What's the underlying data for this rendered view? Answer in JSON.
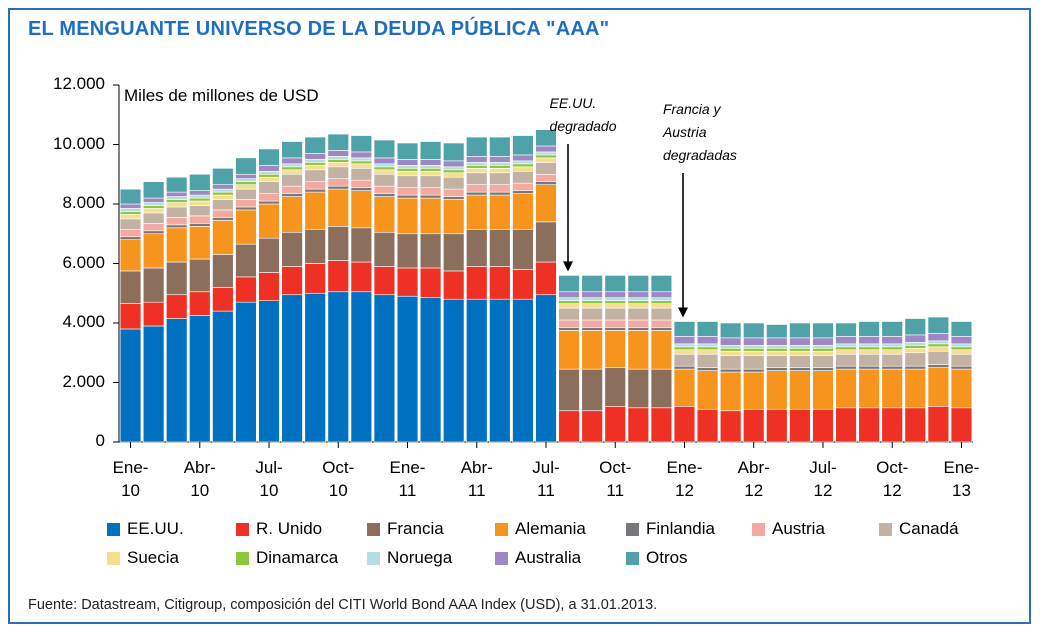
{
  "chart_data": {
    "type": "bar",
    "stacked": true,
    "title": "EL MENGUANTE UNIVERSO DE LA DEUDA PÚBLICA \"AAA\"",
    "ylabel": "Miles de millones de USD",
    "ylim": [
      0,
      12000
    ],
    "yticks": [
      {
        "value": 0,
        "label": "0"
      },
      {
        "value": 2000,
        "label": "2.000"
      },
      {
        "value": 4000,
        "label": "4.000"
      },
      {
        "value": 6000,
        "label": "6.000"
      },
      {
        "value": 8000,
        "label": "8.000"
      },
      {
        "value": 10000,
        "label": "10.000"
      },
      {
        "value": 12000,
        "label": "12.000"
      }
    ],
    "xticks": [
      {
        "index": 0,
        "line1": "Ene-",
        "line2": "10"
      },
      {
        "index": 3,
        "line1": "Abr-",
        "line2": "10"
      },
      {
        "index": 6,
        "line1": "Jul-",
        "line2": "10"
      },
      {
        "index": 9,
        "line1": "Oct-",
        "line2": "10"
      },
      {
        "index": 12,
        "line1": "Ene-",
        "line2": "11"
      },
      {
        "index": 15,
        "line1": "Abr-",
        "line2": "11"
      },
      {
        "index": 18,
        "line1": "Jul-",
        "line2": "11"
      },
      {
        "index": 21,
        "line1": "Oct-",
        "line2": "11"
      },
      {
        "index": 24,
        "line1": "Ene-",
        "line2": "12"
      },
      {
        "index": 27,
        "line1": "Abr-",
        "line2": "12"
      },
      {
        "index": 30,
        "line1": "Jul-",
        "line2": "12"
      },
      {
        "index": 33,
        "line1": "Oct-",
        "line2": "12"
      },
      {
        "index": 36,
        "line1": "Ene-",
        "line2": "13"
      }
    ],
    "categories": [
      "Ene-10",
      "Feb-10",
      "Mar-10",
      "Abr-10",
      "May-10",
      "Jun-10",
      "Jul-10",
      "Ago-10",
      "Sep-10",
      "Oct-10",
      "Nov-10",
      "Dic-10",
      "Ene-11",
      "Feb-11",
      "Mar-11",
      "Abr-11",
      "May-11",
      "Jun-11",
      "Jul-11",
      "Ago-11",
      "Sep-11",
      "Oct-11",
      "Nov-11",
      "Dic-11",
      "Ene-12",
      "Feb-12",
      "Mar-12",
      "Abr-12",
      "May-12",
      "Jun-12",
      "Jul-12",
      "Ago-12",
      "Sep-12",
      "Oct-12",
      "Nov-12",
      "Dic-12",
      "Ene-13"
    ],
    "series": [
      {
        "name": "EE.UU.",
        "color": "#0070c0",
        "values": [
          3800,
          3900,
          4150,
          4250,
          4400,
          4700,
          4750,
          4950,
          5000,
          5050,
          5050,
          4950,
          4900,
          4850,
          4800,
          4800,
          4800,
          4800,
          4950,
          0,
          0,
          0,
          0,
          0,
          0,
          0,
          0,
          0,
          0,
          0,
          0,
          0,
          0,
          0,
          0,
          0,
          0
        ]
      },
      {
        "name": "R. Unido",
        "color": "#ee3124",
        "values": [
          850,
          800,
          800,
          800,
          800,
          850,
          950,
          950,
          1000,
          1050,
          1000,
          950,
          950,
          1000,
          950,
          1100,
          1100,
          1000,
          1100,
          1050,
          1050,
          1200,
          1150,
          1150,
          1200,
          1100,
          1050,
          1100,
          1100,
          1100,
          1100,
          1150,
          1150,
          1150,
          1150,
          1200,
          1150
        ]
      },
      {
        "name": "Francia",
        "color": "#8c6e5d",
        "values": [
          1100,
          1150,
          1100,
          1100,
          1100,
          1100,
          1150,
          1150,
          1150,
          1150,
          1150,
          1150,
          1150,
          1150,
          1250,
          1250,
          1250,
          1350,
          1350,
          1400,
          1400,
          1300,
          1300,
          1300,
          0,
          0,
          0,
          0,
          0,
          0,
          0,
          0,
          0,
          0,
          0,
          0,
          0
        ]
      },
      {
        "name": "Alemania",
        "color": "#f7941d",
        "values": [
          1050,
          1150,
          1150,
          1100,
          1150,
          1150,
          1150,
          1200,
          1250,
          1250,
          1250,
          1200,
          1200,
          1200,
          1150,
          1150,
          1150,
          1200,
          1250,
          1300,
          1300,
          1250,
          1300,
          1300,
          1250,
          1300,
          1300,
          1250,
          1300,
          1300,
          1300,
          1300,
          1300,
          1300,
          1300,
          1300,
          1300
        ]
      },
      {
        "name": "Finlandia",
        "color": "#77787b",
        "values": [
          100,
          100,
          100,
          100,
          100,
          100,
          100,
          100,
          100,
          100,
          100,
          100,
          100,
          100,
          100,
          100,
          100,
          100,
          100,
          100,
          100,
          100,
          100,
          100,
          100,
          100,
          100,
          100,
          100,
          100,
          100,
          100,
          100,
          100,
          100,
          100,
          100
        ]
      },
      {
        "name": "Austria",
        "color": "#f4a9a0",
        "values": [
          250,
          250,
          250,
          250,
          250,
          250,
          250,
          250,
          250,
          250,
          250,
          250,
          250,
          250,
          250,
          250,
          250,
          250,
          250,
          250,
          250,
          250,
          250,
          250,
          0,
          0,
          0,
          0,
          0,
          0,
          0,
          0,
          0,
          0,
          0,
          0,
          0
        ]
      },
      {
        "name": "Canadá",
        "color": "#c2b2a3",
        "values": [
          350,
          350,
          350,
          350,
          350,
          350,
          400,
          400,
          400,
          400,
          400,
          400,
          400,
          400,
          400,
          400,
          400,
          400,
          400,
          400,
          400,
          400,
          400,
          400,
          400,
          450,
          450,
          450,
          400,
          400,
          400,
          400,
          400,
          400,
          450,
          450,
          400
        ]
      },
      {
        "name": "Suecia",
        "color": "#f5df8e",
        "values": [
          150,
          150,
          150,
          150,
          150,
          150,
          150,
          150,
          150,
          150,
          150,
          150,
          150,
          150,
          150,
          150,
          150,
          150,
          150,
          150,
          150,
          150,
          150,
          150,
          150,
          150,
          150,
          150,
          150,
          150,
          150,
          150,
          150,
          150,
          150,
          150,
          150
        ]
      },
      {
        "name": "Dinamarca",
        "color": "#8dc63f",
        "values": [
          100,
          100,
          100,
          100,
          100,
          100,
          100,
          100,
          100,
          100,
          100,
          100,
          100,
          100,
          100,
          100,
          100,
          100,
          100,
          100,
          100,
          100,
          100,
          100,
          100,
          100,
          100,
          100,
          100,
          100,
          100,
          100,
          100,
          100,
          100,
          100,
          100
        ]
      },
      {
        "name": "Noruega",
        "color": "#b3dde0",
        "values": [
          100,
          100,
          100,
          100,
          100,
          100,
          100,
          100,
          100,
          100,
          100,
          100,
          100,
          100,
          100,
          100,
          100,
          100,
          100,
          100,
          100,
          100,
          100,
          100,
          100,
          100,
          100,
          100,
          100,
          100,
          100,
          100,
          100,
          100,
          100,
          100,
          100
        ]
      },
      {
        "name": "Australia",
        "color": "#9e87c5",
        "values": [
          150,
          150,
          150,
          150,
          150,
          150,
          200,
          200,
          200,
          200,
          200,
          200,
          200,
          200,
          200,
          200,
          200,
          200,
          200,
          200,
          200,
          200,
          200,
          200,
          250,
          250,
          250,
          250,
          250,
          250,
          250,
          250,
          250,
          250,
          250,
          250,
          250
        ]
      },
      {
        "name": "Otros",
        "color": "#4fa3a8",
        "values": [
          500,
          550,
          500,
          550,
          550,
          550,
          550,
          550,
          550,
          550,
          550,
          600,
          550,
          600,
          600,
          650,
          650,
          650,
          550,
          550,
          550,
          550,
          550,
          550,
          500,
          500,
          500,
          500,
          450,
          500,
          500,
          450,
          500,
          500,
          550,
          550,
          500
        ]
      }
    ],
    "annotations": [
      {
        "lines": [
          "EE.UU.",
          "degradado"
        ],
        "index": 19
      },
      {
        "lines": [
          "Francia y",
          "Austria",
          "degradadas"
        ],
        "index": 24
      }
    ],
    "legend_position": "bottom"
  },
  "units_label": "Miles de millones de USD",
  "source": "Fuente: Datastream, Citigroup, composición del CITI World Bond AAA Index (USD), a 31.01.2013."
}
